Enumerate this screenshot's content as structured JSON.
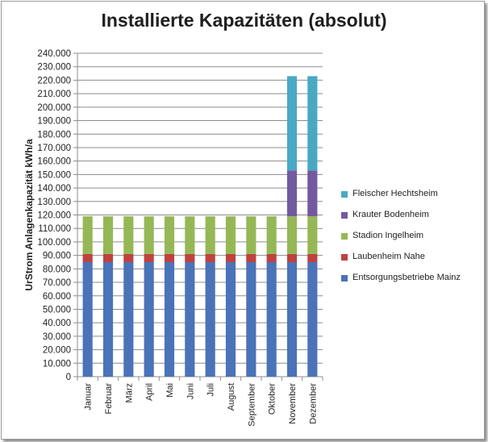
{
  "chart_data": {
    "type": "bar",
    "stacked": true,
    "title": "Installierte Kapazitäten (absolut)",
    "xlabel": "",
    "ylabel": "UrStrom Anlagenkapazität kWh/a",
    "ylim": [
      0,
      240000
    ],
    "ytick_step": 10000,
    "ytick_labels": [
      "0",
      "10.000",
      "20.000",
      "30.000",
      "40.000",
      "50.000",
      "60.000",
      "70.000",
      "80.000",
      "90.000",
      "100.000",
      "110.000",
      "120.000",
      "130.000",
      "140.000",
      "150.000",
      "160.000",
      "170.000",
      "180.000",
      "190.000",
      "200.000",
      "210.000",
      "220.000",
      "230.000",
      "240.000"
    ],
    "grid": true,
    "legend_position": "right",
    "categories": [
      "Januar",
      "Februar",
      "März",
      "April",
      "Mai",
      "Juni",
      "Juli",
      "August",
      "September",
      "Oktober",
      "November",
      "Dezember"
    ],
    "series": [
      {
        "name": "Entsorgungsbetriebe Mainz",
        "color": "#4a73b8",
        "values": [
          85000,
          85000,
          85000,
          85000,
          85000,
          85000,
          85000,
          85000,
          85000,
          85000,
          85000,
          85000
        ]
      },
      {
        "name": "Laubenheim Nahe",
        "color": "#c0413e",
        "values": [
          6000,
          6000,
          6000,
          6000,
          6000,
          6000,
          6000,
          6000,
          6000,
          6000,
          6000,
          6000
        ]
      },
      {
        "name": "Stadion Ingelheim",
        "color": "#95b856",
        "values": [
          28000,
          28000,
          28000,
          28000,
          28000,
          28000,
          28000,
          28000,
          28000,
          28000,
          28000,
          28000
        ]
      },
      {
        "name": "Krauter Bodenheim",
        "color": "#7359a0",
        "values": [
          0,
          0,
          0,
          0,
          0,
          0,
          0,
          0,
          0,
          0,
          34000,
          34000
        ]
      },
      {
        "name": "Fleischer Hechtsheim",
        "color": "#49a9c4",
        "values": [
          0,
          0,
          0,
          0,
          0,
          0,
          0,
          0,
          0,
          0,
          70000,
          70000
        ]
      }
    ]
  }
}
